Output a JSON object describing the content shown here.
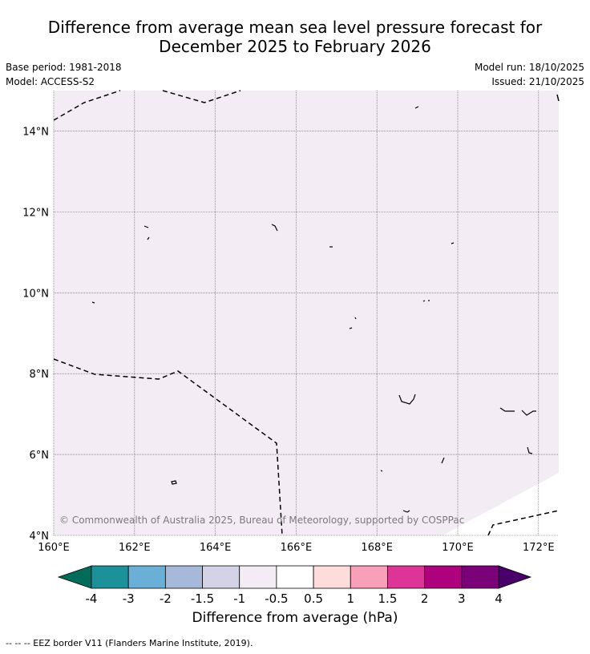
{
  "title": {
    "line1": "Difference from average mean sea level pressure forecast for",
    "line2": "December 2025 to February 2026"
  },
  "meta": {
    "base_period": "Base period: 1981-2018",
    "model": "Model: ACCESS-S2",
    "model_run": "Model run: 18/10/2025",
    "issued": "Issued: 21/10/2025"
  },
  "map": {
    "extent": {
      "lon": [
        160,
        172.5
      ],
      "lat": [
        4,
        15
      ]
    },
    "lon_ticks": [
      {
        "value": 160,
        "label": "160°E"
      },
      {
        "value": 162,
        "label": "162°E"
      },
      {
        "value": 164,
        "label": "164°E"
      },
      {
        "value": 166,
        "label": "166°E"
      },
      {
        "value": 168,
        "label": "168°E"
      },
      {
        "value": 170,
        "label": "170°E"
      },
      {
        "value": 172,
        "label": "172°E"
      }
    ],
    "lat_ticks": [
      {
        "value": 4,
        "label": "4°N"
      },
      {
        "value": 6,
        "label": "6°N"
      },
      {
        "value": 8,
        "label": "8°N"
      },
      {
        "value": 10,
        "label": "10°N"
      },
      {
        "value": 12,
        "label": "12°N"
      },
      {
        "value": 14,
        "label": "14°N"
      }
    ],
    "field_color": "#f4ecf5",
    "copyright": "© Commonwealth of Australia 2025, Bureau of Meteorology, supported by COSPPac"
  },
  "colorbar": {
    "title": "Difference from average (hPa)",
    "labels": [
      "-4",
      "-3",
      "-2",
      "-1.5",
      "-1",
      "-0.5",
      "0.5",
      "1",
      "1.5",
      "2",
      "3",
      "4"
    ],
    "colors": [
      "#1c9199",
      "#6aafd6",
      "#a7b9da",
      "#d3d2e6",
      "#f4ecf5",
      "#ffffff",
      "#fedcdc",
      "#f8a0ba",
      "#dd3497",
      "#ae017e",
      "#7a0177"
    ],
    "under_color": "#016c59",
    "over_color": "#49006a"
  },
  "footer": "--  --  -- EEZ border V11 (Flanders Marine Institute, 2019)."
}
